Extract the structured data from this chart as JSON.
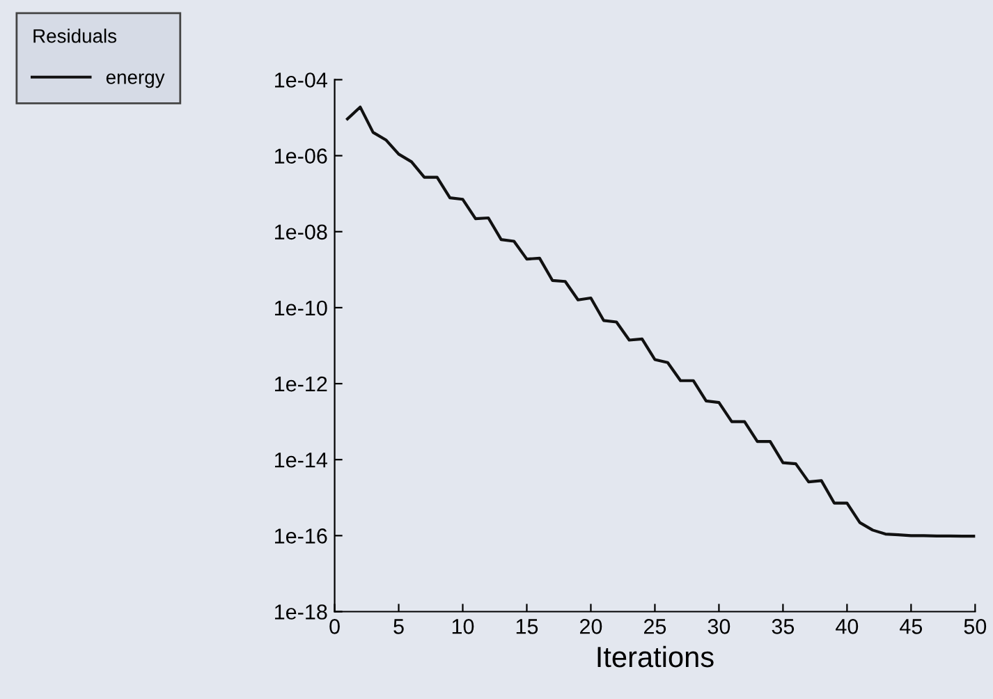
{
  "chart_data": {
    "type": "line",
    "xlabel": "Iterations",
    "legend_title": "Residuals",
    "legend": "top left",
    "log": "y",
    "grid": false,
    "marker": "none",
    "line_style": "solid",
    "x": [
      1,
      2,
      3,
      4,
      5,
      6,
      7,
      8,
      9,
      10,
      11,
      12,
      13,
      14,
      15,
      16,
      17,
      18,
      19,
      20,
      21,
      22,
      23,
      24,
      25,
      26,
      27,
      28,
      29,
      30,
      31,
      32,
      33,
      34,
      35,
      36,
      37,
      38,
      39,
      40,
      41,
      42,
      43,
      44,
      45,
      46,
      47,
      48,
      49,
      50
    ],
    "series": [
      {
        "name": "energy",
        "color": "#111111",
        "values": [
          9.3e-06,
          1.9e-05,
          4.1e-06,
          2.6e-06,
          1.1e-06,
          6.9e-07,
          2.7e-07,
          2.7e-07,
          7.8e-08,
          7.1e-08,
          2.2e-08,
          2.3e-08,
          6.2e-09,
          5.6e-09,
          1.9e-09,
          2e-09,
          5.2e-10,
          4.9e-10,
          1.6e-10,
          1.8e-10,
          4.6e-11,
          4.2e-11,
          1.4e-11,
          1.5e-11,
          4.3e-12,
          3.6e-12,
          1.2e-12,
          1.2e-12,
          3.5e-13,
          3.2e-13,
          1e-13,
          1e-13,
          3e-14,
          3e-14,
          8.3e-15,
          7.8e-15,
          2.6e-15,
          2.8e-15,
          7.2e-16,
          7.2e-16,
          2.2e-16,
          1.4e-16,
          1.1e-16,
          1.05e-16,
          1e-16,
          1e-16,
          9.8e-17,
          9.8e-17,
          9.7e-17,
          9.7e-17
        ]
      }
    ],
    "xlim": [
      0,
      50
    ],
    "xticks": [
      0,
      5,
      10,
      15,
      20,
      25,
      30,
      35,
      40,
      45,
      50
    ],
    "ylim": [
      1e-18,
      0.0001
    ],
    "yticks": [
      {
        "value": 1e-18,
        "label": "1e-18"
      },
      {
        "value": 1e-16,
        "label": "1e-16"
      },
      {
        "value": 1e-14,
        "label": "1e-14"
      },
      {
        "value": 1e-12,
        "label": "1e-12"
      },
      {
        "value": 1e-10,
        "label": "1e-10"
      },
      {
        "value": 1e-08,
        "label": "1e-08"
      },
      {
        "value": 1e-06,
        "label": "1e-06"
      },
      {
        "value": 0.0001,
        "label": "1e-04"
      }
    ]
  }
}
